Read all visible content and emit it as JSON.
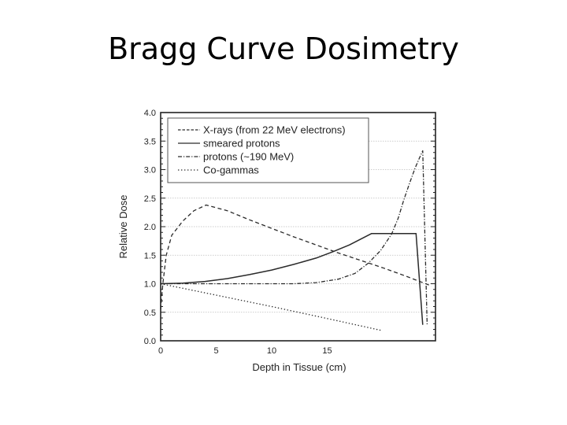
{
  "slide": {
    "title": "Bragg Curve Dosimetry"
  },
  "chart_data": {
    "type": "line",
    "title": "Bragg Curve Dosimetry",
    "xlabel": "Depth in Tissue (cm)",
    "ylabel": "Relative Dose",
    "xlim": [
      0,
      24.8
    ],
    "ylim": [
      0.0,
      4.0
    ],
    "xticks": [
      0,
      5,
      10,
      15
    ],
    "xtick_labels": [
      "0",
      "5",
      "10",
      "15"
    ],
    "yticks": [
      0.0,
      0.5,
      1.0,
      1.5,
      2.0,
      2.5,
      3.0,
      3.5,
      4.0
    ],
    "ytick_labels": [
      "0.0",
      "0.5",
      "1.0",
      "1.5",
      "2.0",
      "2.5",
      "3.0",
      "3.5",
      "4.0"
    ],
    "grid": {
      "horizontal": true,
      "vertical": false,
      "style": "dotted"
    },
    "legend_position": "upper-left",
    "series": [
      {
        "name": "X-rays (from 22 MeV electrons)",
        "style": "dashed",
        "points": [
          [
            0,
            0.55
          ],
          [
            0.2,
            1.0
          ],
          [
            0.5,
            1.5
          ],
          [
            1.0,
            1.85
          ],
          [
            2.0,
            2.1
          ],
          [
            3.0,
            2.28
          ],
          [
            4.1,
            2.38
          ],
          [
            6.0,
            2.28
          ],
          [
            8.0,
            2.12
          ],
          [
            10.0,
            1.97
          ],
          [
            12.0,
            1.82
          ],
          [
            14.0,
            1.68
          ],
          [
            16.0,
            1.54
          ],
          [
            18.0,
            1.41
          ],
          [
            20.0,
            1.28
          ],
          [
            22.0,
            1.14
          ],
          [
            24.4,
            0.96
          ]
        ]
      },
      {
        "name": "smeared protons",
        "style": "solid",
        "points": [
          [
            0,
            1.0
          ],
          [
            2.0,
            1.01
          ],
          [
            4.0,
            1.04
          ],
          [
            6.0,
            1.09
          ],
          [
            8.0,
            1.16
          ],
          [
            10.0,
            1.24
          ],
          [
            12.0,
            1.34
          ],
          [
            14.0,
            1.45
          ],
          [
            15.5,
            1.56
          ],
          [
            17.0,
            1.68
          ],
          [
            19.0,
            1.88
          ],
          [
            23.0,
            1.88
          ],
          [
            23.6,
            0.28
          ]
        ]
      },
      {
        "name": "protons (~190 MeV)",
        "style": "dashdot",
        "points": [
          [
            0,
            1.0
          ],
          [
            4.0,
            1.0
          ],
          [
            8.0,
            1.0
          ],
          [
            12.0,
            1.0
          ],
          [
            14.0,
            1.02
          ],
          [
            16.0,
            1.08
          ],
          [
            17.5,
            1.18
          ],
          [
            18.7,
            1.36
          ],
          [
            19.8,
            1.58
          ],
          [
            20.8,
            1.87
          ],
          [
            21.4,
            2.15
          ],
          [
            21.9,
            2.47
          ],
          [
            22.4,
            2.75
          ],
          [
            22.9,
            3.02
          ],
          [
            23.3,
            3.2
          ],
          [
            23.6,
            3.33
          ],
          [
            24.0,
            0.28
          ]
        ]
      },
      {
        "name": "Co-gammas",
        "style": "dotted",
        "points": [
          [
            0,
            1.0
          ],
          [
            5.0,
            0.8
          ],
          [
            10.0,
            0.6
          ],
          [
            15.0,
            0.39
          ],
          [
            19.9,
            0.18
          ]
        ]
      }
    ]
  },
  "colors": {
    "line": "#2a2a2a",
    "frame": "#222222",
    "grid": "#bdbdbd",
    "background": "#ffffff"
  }
}
